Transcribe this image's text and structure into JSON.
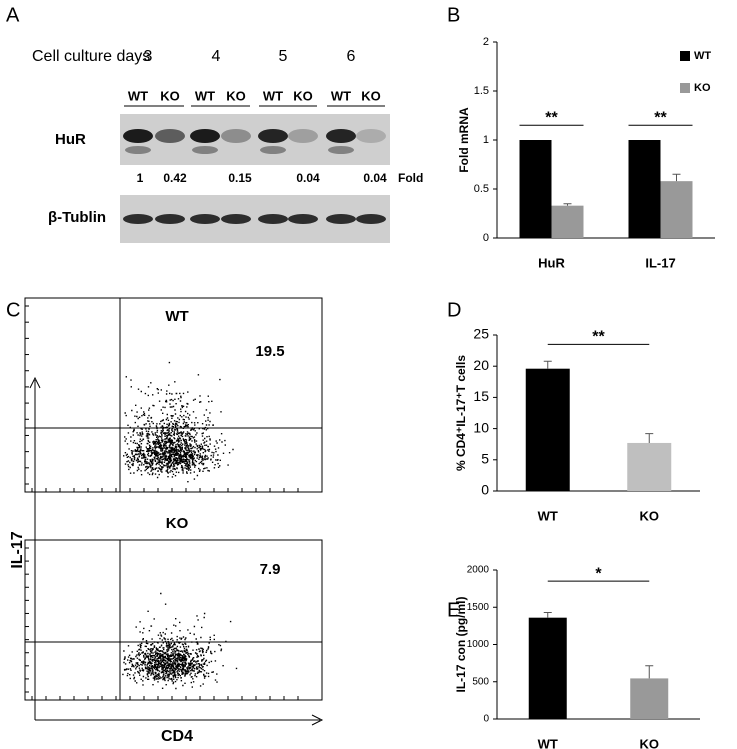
{
  "blot": {
    "label": "A",
    "row_title": "Cell culture days",
    "days": [
      "3",
      "4",
      "5",
      "6"
    ],
    "lanes": [
      "WT",
      "KO",
      "WT",
      "KO",
      "WT",
      "KO",
      "WT",
      "KO"
    ],
    "bands": [
      "HuR",
      "β-Tublin"
    ],
    "fold_values": [
      1,
      0.42,
      0.15,
      0.04,
      0.04
    ],
    "fold_unit": "Fold"
  },
  "flow": {
    "label": "C",
    "y_axis": "IL-17",
    "x_axis": "CD4",
    "plots": [
      {
        "title": "WT",
        "percent": 19.5
      },
      {
        "title": "KO",
        "percent": 7.9
      }
    ]
  },
  "chart_data": [
    {
      "type": "bar",
      "panel": "B",
      "ylabel": "Fold mRNA",
      "categories": [
        "HuR",
        "IL-17"
      ],
      "series": [
        {
          "name": "WT",
          "color": "#000000",
          "values": [
            1,
            1
          ]
        },
        {
          "name": "KO",
          "color": "#999999",
          "values": [
            0.33,
            0.58
          ],
          "errors": [
            0.02,
            0.07
          ]
        }
      ],
      "ylim": [
        0,
        2
      ],
      "yticks": [
        0,
        0.5,
        1,
        1.5,
        2
      ],
      "annotations": [
        "**",
        "**"
      ],
      "legend": "upper right"
    },
    {
      "type": "bar",
      "panel": "D",
      "ylabel": "% CD4⁺IL-17⁺T cells",
      "categories": [
        "WT",
        "KO"
      ],
      "values": [
        19.6,
        7.7
      ],
      "errors": [
        1.2,
        1.5
      ],
      "colors": [
        "#000000",
        "#bfbfbf"
      ],
      "ylim": [
        0,
        25
      ],
      "yticks": [
        0,
        5,
        10,
        15,
        20,
        25
      ],
      "annotations": [
        "**"
      ]
    },
    {
      "type": "bar",
      "panel": "E",
      "ylabel": "IL-17 con (pg/ml)",
      "categories": [
        "WT",
        "KO"
      ],
      "values": [
        1360,
        545
      ],
      "errors": [
        70,
        170
      ],
      "colors": [
        "#000000",
        "#999999"
      ],
      "ylim": [
        0,
        2000
      ],
      "yticks": [
        0,
        500,
        1000,
        1500,
        2000
      ],
      "annotations": [
        "*"
      ]
    }
  ]
}
